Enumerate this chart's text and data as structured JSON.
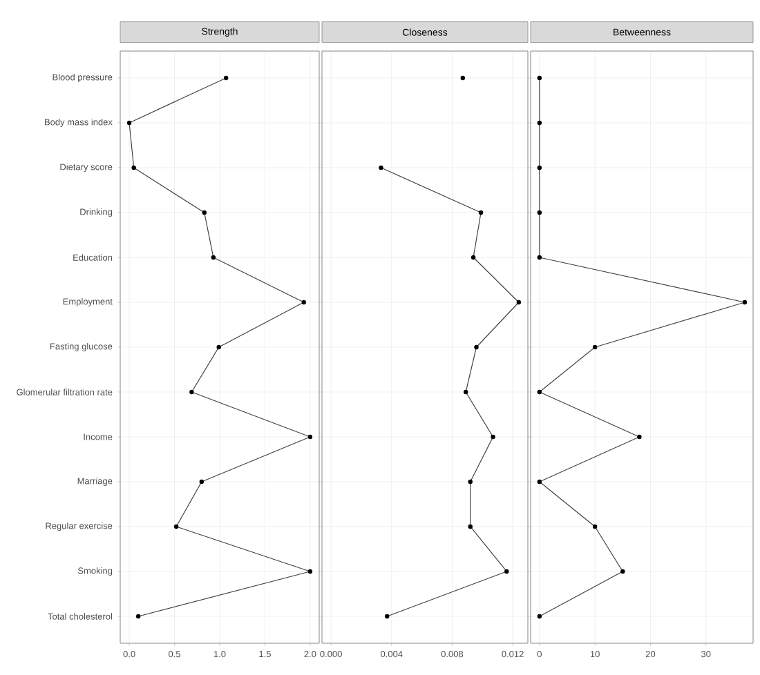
{
  "chart_data": [
    {
      "type": "line",
      "title": "Strength",
      "orientation": "horizontal",
      "marker": "circle",
      "grid": true,
      "color": "#000000",
      "categories": [
        "Blood pressure",
        "Body mass index",
        "Dietary score",
        "Drinking",
        "Education",
        "Employment",
        "Fasting glucose",
        "Glomerular filtration rate",
        "Income",
        "Marriage",
        "Regular exercise",
        "Smoking",
        "Total cholesterol"
      ],
      "values": [
        1.07,
        0.0,
        0.05,
        0.83,
        0.93,
        1.93,
        0.99,
        0.69,
        2.0,
        0.8,
        0.52,
        2.0,
        0.1
      ],
      "xlim": [
        -0.1,
        2.1
      ],
      "xticks": [
        {
          "value": 0,
          "label": "0.0"
        },
        0.5,
        {
          "value": 1,
          "label": "1.0"
        },
        1.5,
        {
          "value": 2,
          "label": "2.0"
        }
      ]
    },
    {
      "type": "line",
      "title": "Closeness",
      "orientation": "horizontal",
      "marker": "circle",
      "grid": true,
      "color": "#000000",
      "tick_labels": "x",
      "categories": [
        null,
        null,
        null,
        null,
        null,
        null,
        null,
        null,
        null,
        null,
        null,
        null,
        null
      ],
      "values": [
        0.0087,
        null,
        0.0033,
        0.0099,
        0.0094,
        0.0124,
        0.0096,
        0.0089,
        0.0107,
        0.0092,
        0.0092,
        0.0116,
        0.0037
      ],
      "xlim": [
        -0.0006,
        0.013
      ],
      "xticks": [
        {
          "value": 0,
          "label": "0.000"
        },
        {
          "value": 0.004,
          "label": "0.004"
        },
        {
          "value": 0.008,
          "label": "0.008"
        },
        {
          "value": 0.012,
          "label": "0.012"
        }
      ]
    },
    {
      "type": "line",
      "title": "Betweenness",
      "orientation": "horizontal",
      "marker": "circle",
      "grid": true,
      "color": "#000000",
      "tick_labels": "x",
      "categories": [
        null,
        null,
        null,
        null,
        null,
        null,
        null,
        null,
        null,
        null,
        null,
        null,
        null
      ],
      "values": [
        0,
        0,
        0,
        0,
        0,
        37,
        10,
        0,
        18,
        0,
        10,
        15,
        0
      ],
      "xlim": [
        -1.6,
        38.5
      ],
      "xticks": [
        0,
        10,
        20,
        30
      ]
    }
  ]
}
